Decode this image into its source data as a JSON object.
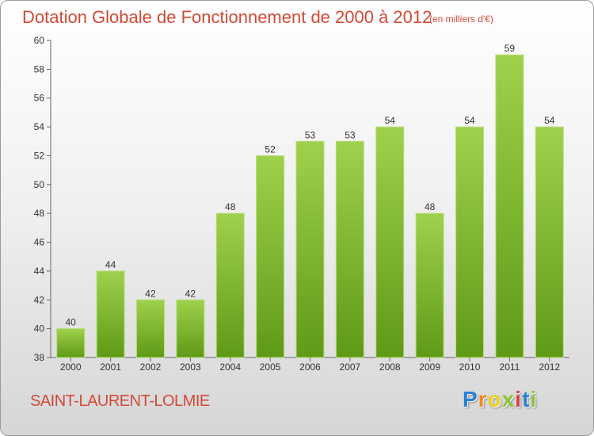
{
  "chart_data": {
    "type": "bar",
    "title": "Dotation Globale de Fonctionnement de 2000 à 2012",
    "unit_note": "(en milliers d'€)",
    "categories": [
      "2000",
      "2001",
      "2002",
      "2003",
      "2004",
      "2005",
      "2006",
      "2007",
      "2008",
      "2009",
      "2010",
      "2011",
      "2012"
    ],
    "values": [
      40,
      44,
      42,
      42,
      48,
      52,
      53,
      53,
      54,
      48,
      54,
      59,
      54
    ],
    "ylim": [
      38,
      60
    ],
    "yticks": [
      38,
      40,
      42,
      44,
      46,
      48,
      50,
      52,
      54,
      56,
      58,
      60
    ],
    "grid": false,
    "bar_color": "#7cbb2a"
  },
  "footer": {
    "commune": "SAINT-LAURENT-LOLMIE",
    "logo_letters": [
      {
        "ch": "P",
        "color": "#2a7fd4"
      },
      {
        "ch": "r",
        "color": "#f08a1c"
      },
      {
        "ch": "o",
        "color": "#e8d21e"
      },
      {
        "ch": "x",
        "color": "#8ac43c"
      },
      {
        "ch": "i",
        "color": "#d83b3b"
      },
      {
        "ch": "t",
        "color": "#2a7fd4"
      },
      {
        "ch": "i",
        "color": "#8ac43c"
      }
    ]
  }
}
